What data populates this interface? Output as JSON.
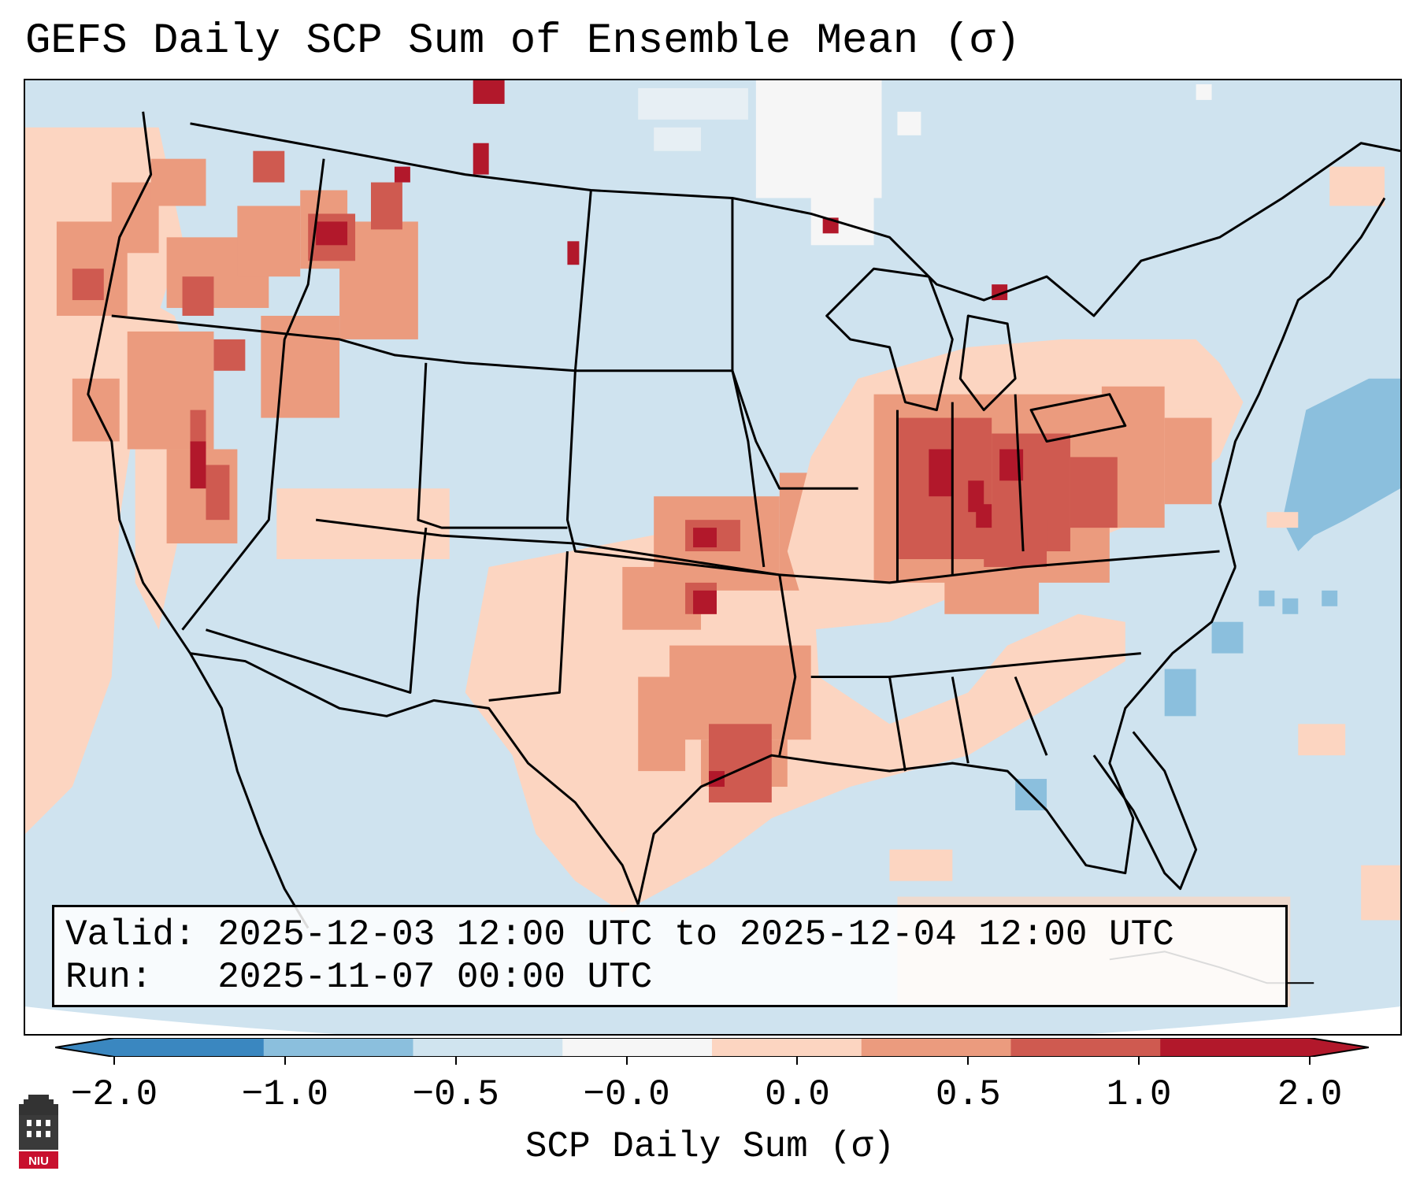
{
  "title": "GEFS Daily SCP Sum of Ensemble Mean (σ)",
  "info": {
    "valid_label": "Valid:",
    "valid_value": "2025-12-03 12:00 UTC to 2025-12-04 12:00 UTC",
    "run_label": "Run:",
    "run_value": "2025-11-07 00:00 UTC"
  },
  "colorbar": {
    "label": "SCP Daily Sum (σ)",
    "ticks": [
      "−2.0",
      "−1.0",
      "−0.5",
      "−0.0",
      "0.0",
      "0.5",
      "1.0",
      "2.0"
    ],
    "colors": [
      "#3a87c0",
      "#8bbfdd",
      "#d0e4ef",
      "#f6f6f6",
      "#fcd5c1",
      "#eb9b7e",
      "#cf5a50",
      "#b2182b"
    ],
    "extend": "both"
  },
  "legend_colors": {
    "background_field": "#cfe3ef",
    "light_positive": "#fcd5c1",
    "moderate_positive": "#eb9b7e",
    "strong_positive": "#cf5a50",
    "extreme_positive": "#b2182b",
    "light_negative": "#8bbfdd",
    "near_zero": "#f6f6f6"
  },
  "logo": {
    "text": "NIU",
    "icon": "university-tower-icon"
  }
}
